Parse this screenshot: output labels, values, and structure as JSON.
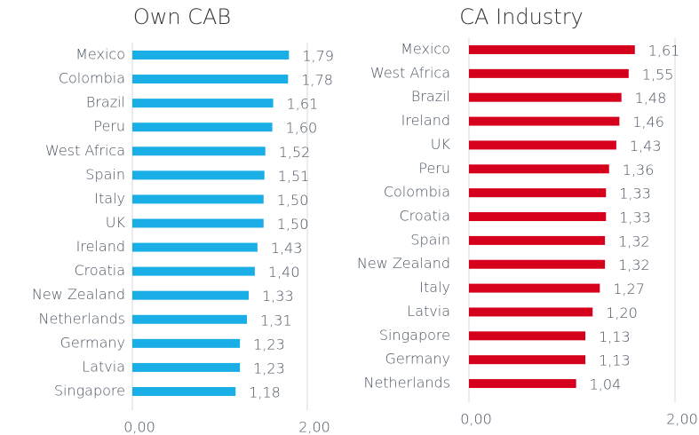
{
  "chart_data": [
    {
      "type": "bar",
      "orientation": "horizontal",
      "title": "Own CAB",
      "color": "#19aee6",
      "categories": [
        "Mexico",
        "Colombia",
        "Brazil",
        "Peru",
        "West Africa",
        "Spain",
        "Italy",
        "UK",
        "Ireland",
        "Croatia",
        "New Zealand",
        "Netherlands",
        "Germany",
        "Latvia",
        "Singapore"
      ],
      "values": [
        1.79,
        1.78,
        1.61,
        1.6,
        1.52,
        1.51,
        1.5,
        1.5,
        1.43,
        1.4,
        1.33,
        1.31,
        1.23,
        1.23,
        1.18
      ],
      "value_labels": [
        "1,79",
        "1,78",
        "1,61",
        "1,60",
        "1,52",
        "1,51",
        "1,50",
        "1,50",
        "1,43",
        "1,40",
        "1,33",
        "1,31",
        "1,23",
        "1,23",
        "1,18"
      ],
      "xlim": [
        0,
        2
      ],
      "xticks": [
        {
          "value": 0,
          "label": "0,00"
        },
        {
          "value": 2,
          "label": "2,00"
        }
      ],
      "grid": true
    },
    {
      "type": "bar",
      "orientation": "horizontal",
      "title": "CA Industry",
      "color": "#d5001c",
      "categories": [
        "Mexico",
        "West Africa",
        "Brazil",
        "Ireland",
        "UK",
        "Peru",
        "Colombia",
        "Croatia",
        "Spain",
        "New Zealand",
        "Italy",
        "Latvia",
        "Singapore",
        "Germany",
        "Netherlands"
      ],
      "values": [
        1.61,
        1.55,
        1.48,
        1.46,
        1.43,
        1.36,
        1.33,
        1.33,
        1.32,
        1.32,
        1.27,
        1.2,
        1.13,
        1.13,
        1.04
      ],
      "value_labels": [
        "1,61",
        "1,55",
        "1,48",
        "1,46",
        "1,43",
        "1,36",
        "1,33",
        "1,33",
        "1,32",
        "1,32",
        "1,27",
        "1,20",
        "1,13",
        "1,13",
        "1,04"
      ],
      "xlim": [
        0,
        2
      ],
      "xticks": [
        {
          "value": 0,
          "label": "0,00"
        },
        {
          "value": 2,
          "label": "2,00"
        }
      ],
      "grid": true
    }
  ]
}
